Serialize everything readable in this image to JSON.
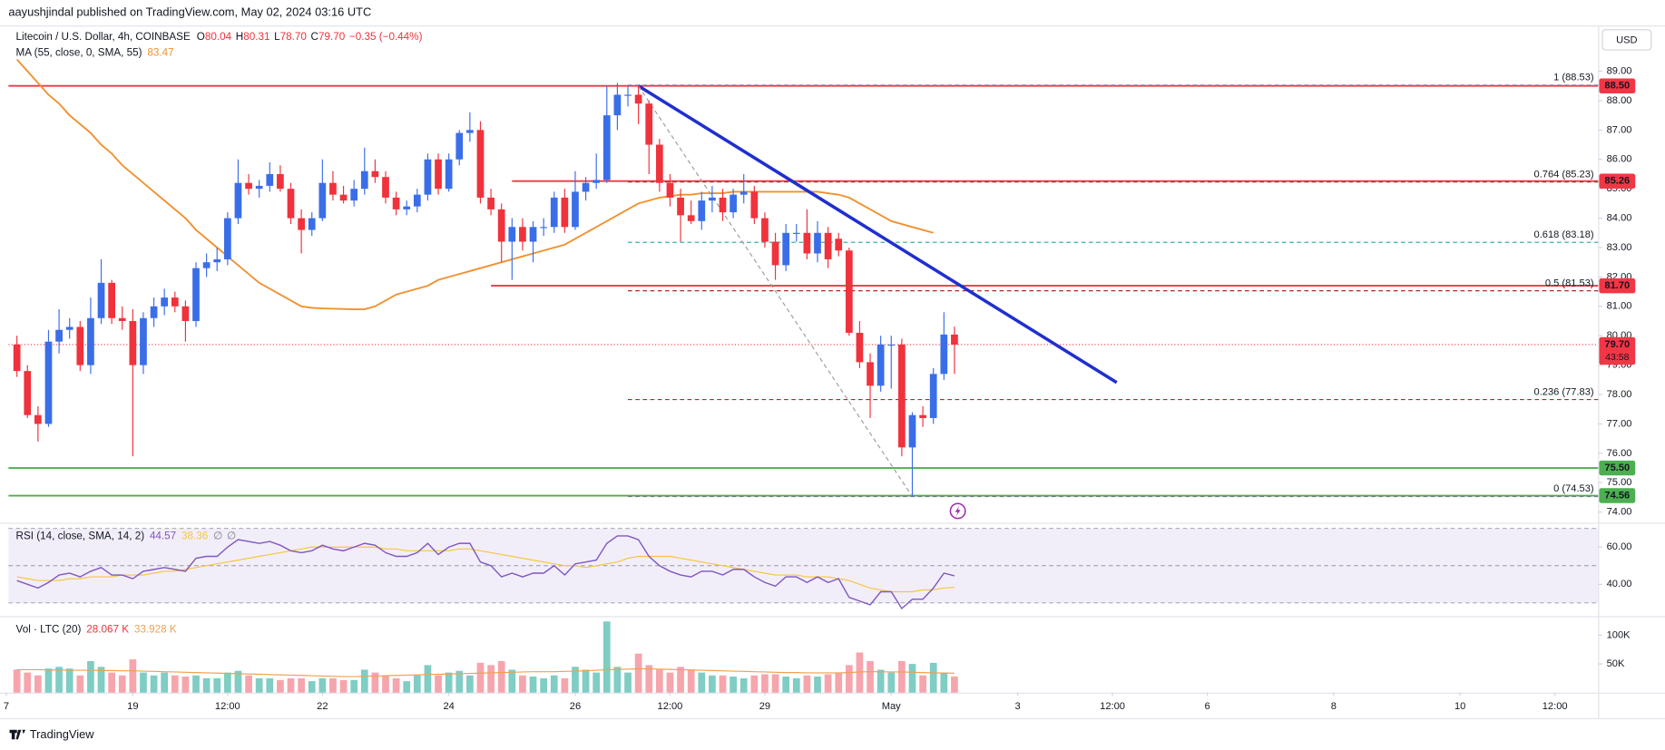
{
  "header": {
    "published": "aayushjindal published on TradingView.com, May 02, 2024 03:16 UTC",
    "symbol": "Litecoin / U.S. Dollar, 4h, COINBASE",
    "ohlc": [
      {
        "label": "O",
        "value": "80.04"
      },
      {
        "label": "H",
        "value": "80.31"
      },
      {
        "label": "L",
        "value": "78.70"
      },
      {
        "label": "C",
        "value": "79.70"
      }
    ],
    "change": "−0.35 (−0.44%)",
    "currency": "USD"
  },
  "footer": {
    "brand": "TradingView"
  },
  "chart_data": {
    "type": "candlestick",
    "up_color": "#3a6ee8",
    "down_color": "#f0323c",
    "xlim": [
      -0.8,
      150.1
    ],
    "xticks": [
      {
        "value": -1,
        "label": "7"
      },
      {
        "value": 11,
        "label": "19"
      },
      {
        "value": 20,
        "label": "12:00"
      },
      {
        "value": 29,
        "label": "22"
      },
      {
        "value": 41,
        "label": "24"
      },
      {
        "value": 53,
        "label": "26"
      },
      {
        "value": 62,
        "label": "12:00"
      },
      {
        "value": 71,
        "label": "29"
      },
      {
        "value": 83,
        "label": "May"
      },
      {
        "value": 95,
        "label": "3"
      },
      {
        "value": 104,
        "label": "12:00"
      },
      {
        "value": 113,
        "label": "6"
      },
      {
        "value": 125,
        "label": "8"
      },
      {
        "value": 137,
        "label": "10"
      },
      {
        "value": 146,
        "label": "12:00"
      }
    ],
    "ylim": [
      73.64,
      90.52
    ],
    "yticks": [
      {
        "value": 74,
        "label": "74.00"
      },
      {
        "value": 75,
        "label": "75.00"
      },
      {
        "value": 76,
        "label": "76.00"
      },
      {
        "value": 77,
        "label": "77.00"
      },
      {
        "value": 78,
        "label": "78.00"
      },
      {
        "value": 79,
        "label": "79.00"
      },
      {
        "value": 80,
        "label": "80.00"
      },
      {
        "value": 81,
        "label": "81.00"
      },
      {
        "value": 82,
        "label": "82.00"
      },
      {
        "value": 83,
        "label": "83.00"
      },
      {
        "value": 84,
        "label": "84.00"
      },
      {
        "value": 85,
        "label": "85.00"
      },
      {
        "value": 86,
        "label": "86.00"
      },
      {
        "value": 87,
        "label": "87.00"
      },
      {
        "value": 88,
        "label": "88.00"
      },
      {
        "value": 89,
        "label": "89.00"
      }
    ],
    "grid": false,
    "open": [
      79.7,
      78.8,
      77.3,
      77.0,
      79.8,
      80.2,
      80.3,
      79.0,
      80.6,
      81.8,
      80.6,
      80.5,
      79.0,
      80.6,
      81.0,
      81.3,
      81.0,
      80.5,
      82.3,
      82.5,
      82.6,
      84.0,
      85.2,
      85.0,
      85.1,
      85.5,
      85.0,
      84.0,
      83.6,
      84.0,
      85.2,
      84.8,
      84.6,
      85.0,
      85.6,
      85.4,
      84.7,
      84.3,
      84.4,
      84.8,
      86.0,
      85.0,
      86.0,
      86.9,
      87.0,
      84.7,
      84.3,
      83.2,
      83.7,
      83.2,
      83.7,
      83.7,
      84.7,
      83.7,
      84.9,
      85.2,
      85.3,
      87.5,
      88.2,
      88.2,
      87.9,
      86.5,
      85.2,
      84.7,
      84.1,
      83.9,
      84.6,
      84.7,
      84.2,
      84.8,
      84.9,
      84.0,
      83.2,
      82.4,
      83.5,
      83.5,
      82.8,
      83.5,
      83.3,
      82.9,
      80.1,
      79.1,
      78.3,
      79.7,
      79.7,
      76.2,
      77.3,
      77.2,
      78.7,
      80.04
    ],
    "high": [
      80.0,
      79.0,
      77.6,
      80.2,
      80.9,
      80.6,
      80.5,
      81.3,
      82.6,
      81.9,
      81.0,
      80.9,
      80.8,
      81.3,
      81.6,
      81.5,
      81.2,
      82.5,
      82.8,
      83.0,
      84.2,
      86.0,
      85.5,
      85.3,
      85.9,
      85.8,
      85.2,
      84.3,
      84.2,
      86.0,
      85.6,
      85.1,
      85.3,
      86.4,
      86.0,
      85.6,
      84.9,
      84.6,
      85.0,
      86.2,
      86.2,
      86.2,
      87.0,
      87.6,
      87.3,
      85.0,
      84.5,
      84.0,
      84.0,
      83.9,
      84.0,
      84.9,
      85.0,
      85.6,
      85.4,
      86.2,
      88.5,
      88.6,
      88.5,
      88.5,
      88.0,
      86.7,
      85.5,
      85.0,
      84.6,
      84.9,
      85.1,
      85.0,
      85.0,
      85.5,
      85.1,
      84.2,
      83.5,
      83.8,
      83.8,
      84.3,
      83.9,
      83.7,
      83.5,
      83.0,
      80.5,
      79.4,
      80.0,
      80.0,
      79.9,
      77.4,
      77.6,
      78.9,
      80.8,
      80.31
    ],
    "low": [
      78.6,
      77.2,
      76.4,
      76.9,
      79.4,
      79.9,
      78.8,
      78.7,
      80.4,
      80.4,
      80.2,
      75.9,
      78.7,
      80.3,
      80.7,
      80.8,
      79.8,
      80.3,
      82.0,
      82.2,
      82.4,
      83.8,
      84.8,
      84.7,
      84.9,
      84.9,
      83.8,
      82.8,
      83.4,
      83.9,
      84.6,
      84.5,
      84.4,
      84.8,
      85.2,
      84.5,
      84.1,
      84.1,
      84.2,
      84.6,
      84.8,
      84.9,
      85.8,
      86.6,
      84.5,
      84.1,
      82.5,
      81.9,
      82.9,
      82.5,
      83.4,
      83.5,
      83.5,
      83.6,
      84.6,
      85.0,
      85.2,
      87.0,
      87.8,
      87.2,
      85.5,
      84.9,
      84.4,
      83.2,
      83.8,
      83.6,
      84.2,
      83.9,
      84.0,
      84.5,
      83.8,
      83.0,
      81.9,
      82.2,
      83.2,
      82.6,
      82.5,
      82.3,
      82.7,
      80.0,
      78.9,
      77.2,
      78.1,
      78.2,
      75.9,
      74.53,
      76.9,
      77.0,
      78.5,
      78.7
    ],
    "close": [
      78.8,
      77.3,
      77.0,
      79.8,
      80.2,
      80.3,
      79.0,
      80.6,
      81.8,
      80.6,
      80.5,
      79.0,
      80.6,
      81.0,
      81.3,
      81.0,
      80.5,
      82.3,
      82.5,
      82.6,
      84.0,
      85.2,
      85.0,
      85.1,
      85.5,
      85.0,
      84.0,
      83.6,
      84.0,
      85.2,
      84.8,
      84.6,
      85.0,
      85.6,
      85.4,
      84.7,
      84.3,
      84.4,
      84.8,
      86.0,
      85.0,
      86.0,
      86.9,
      87.0,
      84.7,
      84.3,
      83.2,
      83.7,
      83.2,
      83.7,
      83.7,
      84.7,
      83.7,
      84.9,
      85.2,
      85.3,
      87.5,
      88.2,
      88.2,
      87.9,
      86.5,
      85.2,
      84.7,
      84.1,
      83.9,
      84.6,
      84.7,
      84.2,
      84.8,
      84.9,
      84.0,
      83.2,
      82.4,
      83.5,
      83.5,
      82.8,
      83.5,
      82.6,
      82.9,
      80.1,
      79.1,
      78.3,
      79.7,
      79.7,
      76.2,
      77.3,
      77.2,
      78.7,
      80.04,
      79.7
    ],
    "ma": {
      "name": "MA (55, close, 0, SMA, 55)",
      "last": "83.47",
      "color": "#f0912f",
      "values": [
        89.4,
        89.0,
        88.6,
        88.2,
        87.9,
        87.5,
        87.2,
        86.9,
        86.5,
        86.2,
        85.8,
        85.5,
        85.2,
        84.9,
        84.6,
        84.3,
        84.0,
        83.6,
        83.3,
        83.0,
        82.7,
        82.4,
        82.1,
        81.8,
        81.6,
        81.4,
        81.2,
        81.0,
        80.95,
        80.93,
        80.92,
        80.91,
        80.9,
        80.9,
        81.0,
        81.2,
        81.4,
        81.5,
        81.6,
        81.7,
        81.9,
        82.0,
        82.1,
        82.2,
        82.3,
        82.4,
        82.5,
        82.6,
        82.7,
        82.8,
        82.9,
        83.0,
        83.1,
        83.3,
        83.5,
        83.7,
        83.9,
        84.1,
        84.3,
        84.5,
        84.6,
        84.7,
        84.75,
        84.8,
        84.8,
        84.85,
        84.85,
        84.85,
        84.9,
        84.9,
        84.9,
        84.9,
        84.9,
        84.9,
        84.9,
        84.9,
        84.9,
        84.85,
        84.8,
        84.7,
        84.5,
        84.3,
        84.1,
        83.9,
        83.8,
        83.7,
        83.6,
        83.5,
        null,
        null
      ]
    },
    "levels": [
      {
        "price": 88.5,
        "label": "88.50",
        "color": "#f23645"
      },
      {
        "price": 85.26,
        "label": "85.26",
        "color": "#f23645",
        "from": 47
      },
      {
        "price": 81.7,
        "label": "81.70",
        "color": "#f23645",
        "from": 45
      },
      {
        "price": 75.5,
        "label": "75.50",
        "color": "#4caf50"
      },
      {
        "price": 74.56,
        "label": "74.56",
        "color": "#4caf50"
      }
    ],
    "current": {
      "price": 79.7,
      "label": "79.70",
      "countdown": "43:58",
      "color": "#f23645"
    },
    "fib": {
      "from": 58,
      "levels": [
        {
          "label": "1 (88.53)",
          "price": 88.53,
          "color": "#7a8bb5"
        },
        {
          "label": "0.764 (85.23)",
          "price": 85.23,
          "color": "#b02a2a"
        },
        {
          "label": "0.618 (83.18)",
          "price": 83.18,
          "color": "#26a69a"
        },
        {
          "label": "0.5 (81.53)",
          "price": 81.53,
          "color": "#b02a2a"
        },
        {
          "label": "0.236 (77.83)",
          "price": 77.83,
          "color": "#b02a2a"
        },
        {
          "label": "0 (74.53)",
          "price": 74.53,
          "color": "#787b86"
        }
      ]
    },
    "trendlines": [
      {
        "from": [
          59,
          88.5
        ],
        "to": [
          104.4,
          78.41
        ],
        "color": "#1f2fd0",
        "dashed": false
      },
      {
        "from": [
          59,
          88.5
        ],
        "to": [
          85,
          74.53
        ],
        "color": "#9e9e9e",
        "dashed": true
      }
    ],
    "rsi": {
      "name": "RSI (14, close, SMA, 14, 2)",
      "legend": [
        "44.57",
        "38.36",
        "∅",
        "∅"
      ],
      "color": "#7e57c2",
      "sma_color": "#f5c542",
      "ylim": [
        22.9,
        71.4
      ],
      "yticks": [
        {
          "value": 60,
          "label": "60.00"
        },
        {
          "value": 40,
          "label": "40.00"
        }
      ],
      "band": [
        30,
        70
      ],
      "mid": 50,
      "values": [
        42,
        40,
        38,
        41,
        45,
        46,
        44,
        47,
        49,
        45,
        45,
        43,
        47,
        48,
        49,
        48,
        47,
        54,
        55,
        55,
        60,
        64,
        63,
        62,
        63,
        61,
        58,
        57,
        58,
        61,
        59,
        58,
        60,
        62,
        61,
        57,
        55,
        55,
        57,
        62,
        56,
        60,
        62,
        62,
        52,
        50,
        44,
        46,
        44,
        46,
        46,
        50,
        45,
        51,
        52,
        53,
        62,
        66,
        66,
        64,
        55,
        50,
        47,
        45,
        44,
        47,
        47,
        45,
        48,
        48,
        44,
        41,
        39,
        44,
        44,
        41,
        44,
        41,
        43,
        33,
        31,
        29,
        36,
        36,
        27,
        32,
        32,
        38,
        46,
        44.57
      ],
      "sma": [
        44,
        43,
        42,
        42,
        42,
        43,
        43,
        44,
        44,
        44,
        45,
        45,
        45,
        46,
        47,
        47,
        48,
        49,
        50,
        51,
        52,
        53,
        54,
        55,
        56,
        57,
        58,
        59,
        60,
        60,
        60,
        60,
        60,
        60,
        60,
        59,
        59,
        58,
        58,
        58,
        58,
        58,
        59,
        59,
        58,
        57,
        56,
        55,
        54,
        53,
        52,
        51,
        50,
        50,
        49,
        50,
        51,
        52,
        54,
        55,
        55,
        55,
        55,
        54,
        53,
        52,
        51,
        50,
        49,
        48,
        47,
        46,
        45,
        45,
        45,
        44,
        44,
        44,
        43,
        42,
        40,
        38,
        37,
        36,
        36,
        36,
        37,
        37,
        38,
        38.36
      ]
    },
    "volume": {
      "name": "Vol · LTC (20)",
      "legend": [
        "28.067 K",
        "33.928 K"
      ],
      "up_color": "#7fcdc4",
      "down_color": "#f6a5ad",
      "ma_color": "#f0a050",
      "ylim": [
        0,
        129600
      ],
      "yticks": [
        {
          "value": 100000,
          "label": "100K"
        },
        {
          "value": 50000,
          "label": "50K"
        }
      ],
      "values": [
        40000,
        35000,
        30000,
        42000,
        45000,
        42000,
        30000,
        55000,
        45000,
        35000,
        30000,
        58000,
        35000,
        30000,
        35000,
        30000,
        28000,
        30000,
        25000,
        25000,
        35000,
        38000,
        30000,
        25000,
        25000,
        22000,
        25000,
        25000,
        20000,
        25000,
        25000,
        22000,
        22000,
        40000,
        35000,
        30000,
        25000,
        20000,
        30000,
        48000,
        30000,
        35000,
        38000,
        30000,
        52000,
        48000,
        55000,
        40000,
        30000,
        28000,
        25000,
        30000,
        25000,
        45000,
        40000,
        35000,
        124000,
        45000,
        35000,
        68000,
        48000,
        40000,
        35000,
        45000,
        40000,
        35000,
        30000,
        30000,
        28000,
        25000,
        30000,
        32000,
        32000,
        28000,
        25000,
        30000,
        28000,
        32000,
        35000,
        48000,
        70000,
        55000,
        40000,
        35000,
        55000,
        50000,
        30000,
        52000,
        35000,
        28067
      ],
      "ma": [
        40000,
        40000,
        40000,
        39500,
        39500,
        39000,
        39000,
        39000,
        38500,
        38500,
        38000,
        38000,
        37500,
        37000,
        36500,
        36000,
        35500,
        35000,
        34500,
        34000,
        33500,
        33000,
        32500,
        32000,
        31500,
        31000,
        30500,
        30000,
        29500,
        29000,
        28500,
        28000,
        28000,
        28500,
        29000,
        29500,
        30000,
        30500,
        31000,
        31500,
        32000,
        32500,
        33000,
        33500,
        34000,
        34500,
        35000,
        35500,
        36000,
        36500,
        36500,
        36500,
        37000,
        37500,
        38000,
        39000,
        40000,
        40500,
        41000,
        41500,
        41500,
        41000,
        40500,
        40000,
        39500,
        39000,
        38500,
        38000,
        37500,
        37000,
        36500,
        36000,
        35500,
        35000,
        35000,
        34500,
        34500,
        34500,
        34500,
        35000,
        36000,
        36500,
        36500,
        36000,
        36000,
        35500,
        35000,
        34500,
        34200,
        33928
      ]
    }
  }
}
